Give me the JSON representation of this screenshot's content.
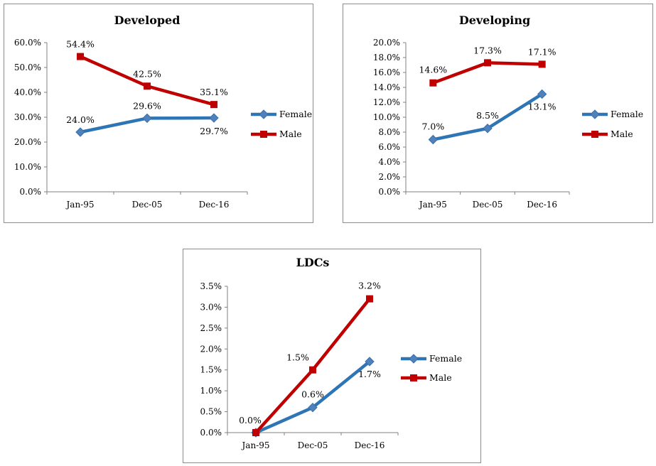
{
  "colors": {
    "female": "#2e75b6",
    "male": "#c00000",
    "axis": "#808080"
  },
  "chart_data": [
    {
      "type": "line",
      "title": "Developed",
      "categories": [
        "Jan-95",
        "Dec-05",
        "Dec-16"
      ],
      "ylim": [
        0,
        60
      ],
      "yticks": [
        "0.0%",
        "10.0%",
        "20.0%",
        "30.0%",
        "40.0%",
        "50.0%",
        "60.0%"
      ],
      "ytick_values": [
        0,
        10,
        20,
        30,
        40,
        50,
        60
      ],
      "legend_position": "right",
      "series": [
        {
          "name": "Female",
          "values": [
            24.0,
            29.6,
            29.7
          ],
          "labels": [
            "24.0%",
            "29.6%",
            "29.7%"
          ]
        },
        {
          "name": "Male",
          "values": [
            54.4,
            42.5,
            35.1
          ],
          "labels": [
            "54.4%",
            "42.5%",
            "35.1%"
          ]
        }
      ]
    },
    {
      "type": "line",
      "title": "Developing",
      "categories": [
        "Jan-95",
        "Dec-05",
        "Dec-16"
      ],
      "ylim": [
        0,
        20
      ],
      "yticks": [
        "0.0%",
        "2.0%",
        "4.0%",
        "6.0%",
        "8.0%",
        "10.0%",
        "12.0%",
        "14.0%",
        "16.0%",
        "18.0%",
        "20.0%"
      ],
      "ytick_values": [
        0,
        2,
        4,
        6,
        8,
        10,
        12,
        14,
        16,
        18,
        20
      ],
      "legend_position": "right",
      "series": [
        {
          "name": "Female",
          "values": [
            7.0,
            8.5,
            13.1
          ],
          "labels": [
            "7.0%",
            "8.5%",
            "13.1%"
          ]
        },
        {
          "name": "Male",
          "values": [
            14.6,
            17.3,
            17.1
          ],
          "labels": [
            "14.6%",
            "17.3%",
            "17.1%"
          ]
        }
      ]
    },
    {
      "type": "line",
      "title": "LDCs",
      "categories": [
        "Jan-95",
        "Dec-05",
        "Dec-16"
      ],
      "ylim": [
        0,
        3.5
      ],
      "yticks": [
        "0.0%",
        "0.5%",
        "1.0%",
        "1.5%",
        "2.0%",
        "2.5%",
        "3.0%",
        "3.5%"
      ],
      "ytick_values": [
        0,
        0.5,
        1.0,
        1.5,
        2.0,
        2.5,
        3.0,
        3.5
      ],
      "legend_position": "right",
      "series": [
        {
          "name": "Female",
          "values": [
            0.0,
            0.6,
            1.7
          ],
          "labels": [
            "",
            "0.6%",
            "1.7%"
          ]
        },
        {
          "name": "Male",
          "values": [
            0.0,
            1.5,
            3.2
          ],
          "labels": [
            "0.0%",
            "1.5%",
            "3.2%"
          ]
        }
      ]
    }
  ]
}
